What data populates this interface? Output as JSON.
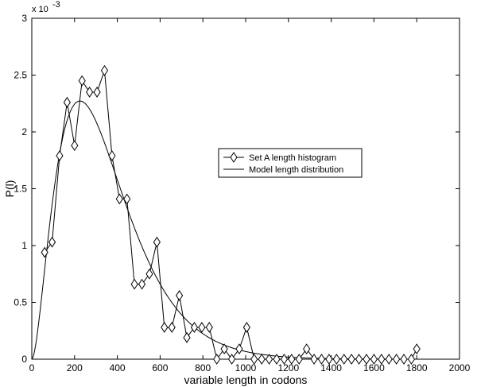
{
  "chart_data": {
    "type": "line",
    "title": "",
    "xlabel": "variable length in codons",
    "ylabel": "P(l)",
    "y_exponent_base": "x 10",
    "y_exponent_power": "-3",
    "xlim": [
      0,
      2000
    ],
    "ylim": [
      0,
      3
    ],
    "xticks": [
      "0",
      "200",
      "400",
      "600",
      "800",
      "1000",
      "1200",
      "1400",
      "1600",
      "1800",
      "2000"
    ],
    "yticks": [
      "0",
      "0.5",
      "1",
      "1.5",
      "2",
      "2.5",
      "3"
    ],
    "grid": false,
    "legend_position": "center-right",
    "series": [
      {
        "name": "Set A length histogram",
        "marker": "diamond",
        "x": [
          60,
          95,
          130,
          165,
          200,
          235,
          270,
          305,
          340,
          375,
          410,
          445,
          480,
          515,
          550,
          585,
          620,
          655,
          690,
          725,
          760,
          795,
          830,
          865,
          900,
          935,
          970,
          1005,
          1040,
          1075,
          1110,
          1145,
          1180,
          1215,
          1250,
          1285,
          1320,
          1355,
          1390,
          1425,
          1460,
          1495,
          1530,
          1565,
          1600,
          1635,
          1670,
          1705,
          1740,
          1775,
          1800
        ],
        "y": [
          0.94,
          1.03,
          1.79,
          2.26,
          1.88,
          2.45,
          2.35,
          2.35,
          2.54,
          1.79,
          1.41,
          1.41,
          0.66,
          0.66,
          0.75,
          1.03,
          0.28,
          0.28,
          0.56,
          0.19,
          0.28,
          0.28,
          0.28,
          0.0,
          0.09,
          0.0,
          0.09,
          0.28,
          0.0,
          0.0,
          0.0,
          0.0,
          0.0,
          0.0,
          0.0,
          0.09,
          0.0,
          0.0,
          0.0,
          0.0,
          0.0,
          0.0,
          0.0,
          0.0,
          0.0,
          0.0,
          0.0,
          0.0,
          0.0,
          0.0,
          0.09
        ]
      },
      {
        "name": "Model length distribution",
        "marker": "none",
        "model": {
          "form": "gamma",
          "shape": 2.8,
          "scale": 125
        }
      }
    ]
  }
}
